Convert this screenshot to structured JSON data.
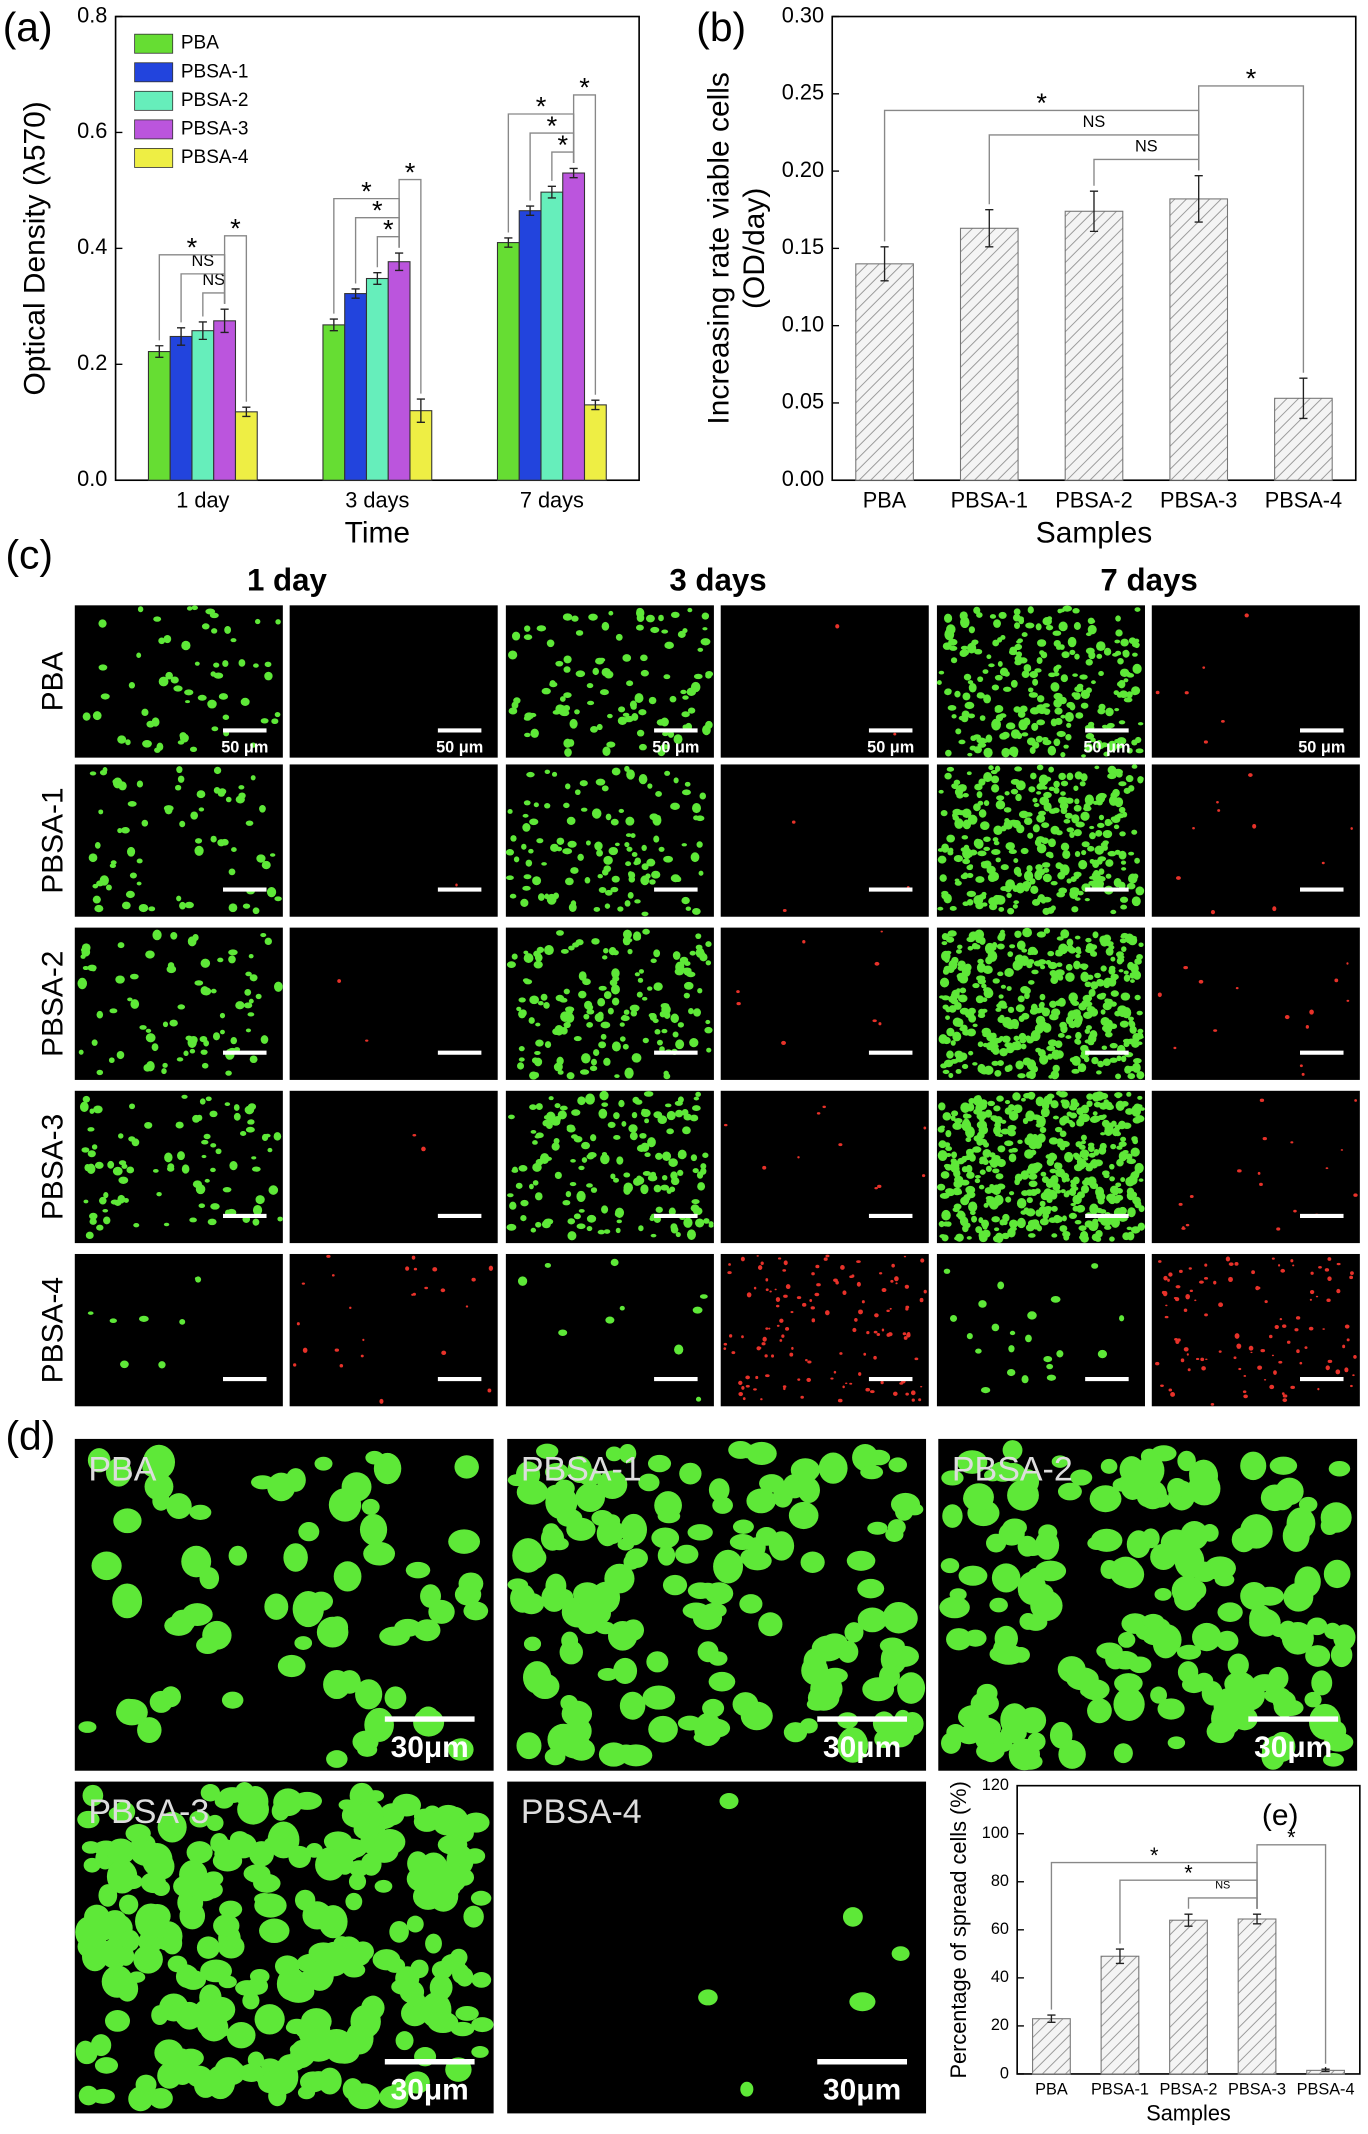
{
  "chart_data": [
    {
      "type": "bar",
      "panel_label": "(a)",
      "categories": [
        "1 day",
        "3 days",
        "7 days"
      ],
      "series": [
        {
          "name": "PBA",
          "color": "#66dd33",
          "values": [
            0.222,
            0.268,
            0.41
          ],
          "errors": [
            0.01,
            0.01,
            0.008
          ]
        },
        {
          "name": "PBSA-1",
          "color": "#2244dd",
          "values": [
            0.248,
            0.322,
            0.465
          ],
          "errors": [
            0.015,
            0.008,
            0.008
          ]
        },
        {
          "name": "PBSA-2",
          "color": "#66eebb",
          "values": [
            0.258,
            0.348,
            0.497
          ],
          "errors": [
            0.015,
            0.01,
            0.01
          ]
        },
        {
          "name": "PBSA-3",
          "color": "#bb55dd",
          "values": [
            0.275,
            0.377,
            0.53
          ],
          "errors": [
            0.02,
            0.015,
            0.008
          ]
        },
        {
          "name": "PBSA-4",
          "color": "#eeee44",
          "values": [
            0.118,
            0.12,
            0.13
          ],
          "errors": [
            0.008,
            0.02,
            0.008
          ]
        }
      ],
      "ylim": [
        0,
        0.8
      ],
      "yticks": [
        {
          "value": 0,
          "label": "0.0"
        },
        0.2,
        0.4,
        0.6,
        0.8
      ],
      "ylabel": "Optical Density (λ570)",
      "xlabel": "Time",
      "legend": "upper left",
      "brackets": [
        {
          "category": 0,
          "from": 2,
          "to": 3,
          "label": "NS"
        },
        {
          "category": 0,
          "from": 1,
          "to": 3,
          "label": "NS"
        },
        {
          "category": 0,
          "from": 0,
          "to": 3,
          "label": "*"
        },
        {
          "category": 0,
          "from": 3,
          "to": 4,
          "label": "*"
        },
        {
          "category": 1,
          "from": 2,
          "to": 3,
          "label": "*"
        },
        {
          "category": 1,
          "from": 1,
          "to": 3,
          "label": "*"
        },
        {
          "category": 1,
          "from": 0,
          "to": 3,
          "label": "*"
        },
        {
          "category": 1,
          "from": 3,
          "to": 4,
          "label": "*"
        },
        {
          "category": 2,
          "from": 2,
          "to": 3,
          "label": "*"
        },
        {
          "category": 2,
          "from": 1,
          "to": 3,
          "label": "*"
        },
        {
          "category": 2,
          "from": 0,
          "to": 3,
          "label": "*"
        },
        {
          "category": 2,
          "from": 3,
          "to": 4,
          "label": "*"
        }
      ]
    },
    {
      "type": "bar",
      "panel_label": "(b)",
      "categories": [
        "PBA",
        "PBSA-1",
        "PBSA-2",
        "PBSA-3",
        "PBSA-4"
      ],
      "values": [
        0.14,
        0.163,
        0.174,
        0.182,
        0.053
      ],
      "errors": [
        0.011,
        0.012,
        0.013,
        0.015,
        0.013
      ],
      "color": "#888888",
      "hatch": true,
      "ylim": [
        0,
        0.3
      ],
      "yticks": [
        {
          "value": 0,
          "label": "0.00"
        },
        {
          "value": 0.05,
          "label": "0.05"
        },
        {
          "value": 0.1,
          "label": "0.10"
        },
        {
          "value": 0.15,
          "label": "0.15"
        },
        {
          "value": 0.2,
          "label": "0.20"
        },
        {
          "value": 0.25,
          "label": "0.25"
        },
        {
          "value": 0.3,
          "label": "0.30"
        }
      ],
      "ylabel": [
        "Increasing rate viable cells",
        "(OD/day)"
      ],
      "xlabel": "Samples",
      "brackets": [
        {
          "from": 2,
          "to": 3,
          "label": "NS"
        },
        {
          "from": 1,
          "to": 3,
          "label": "NS"
        },
        {
          "from": 0,
          "to": 3,
          "label": "*"
        },
        {
          "from": 3,
          "to": 4,
          "label": "*"
        }
      ]
    },
    {
      "type": "bar",
      "panel_label": "(e)",
      "categories": [
        "PBA",
        "PBSA-1",
        "PBSA-2",
        "PBSA-3",
        "PBSA-4"
      ],
      "values": [
        23,
        49,
        64,
        64.5,
        1.5
      ],
      "errors": [
        1.5,
        3,
        2.5,
        2,
        0.5
      ],
      "color": "#888888",
      "hatch": true,
      "ylim": [
        0,
        120
      ],
      "yticks": [
        0,
        20,
        40,
        60,
        80,
        100,
        120
      ],
      "ylabel": [
        "Percentage of spread cells (%)"
      ],
      "xlabel": "Samples",
      "brackets": [
        {
          "from": 2,
          "to": 3,
          "label": "NS"
        },
        {
          "from": 1,
          "to": 3,
          "label": "*"
        },
        {
          "from": 0,
          "to": 3,
          "label": "*"
        },
        {
          "from": 3,
          "to": 4,
          "label": "*"
        }
      ]
    }
  ],
  "images_c": {
    "panel_label": "(c)",
    "columns": [
      "1 day",
      "3 days",
      "7 days"
    ],
    "rows": [
      "PBA",
      "PBSA-1",
      "PBSA-2",
      "PBSA-3",
      "PBSA-4"
    ],
    "scale_bar": "50 μm"
  },
  "images_d": {
    "panel_label": "(d)",
    "panels": [
      "PBA",
      "PBSA-1",
      "PBSA-2",
      "PBSA-3",
      "PBSA-4"
    ],
    "scale_bar": "30μm"
  }
}
